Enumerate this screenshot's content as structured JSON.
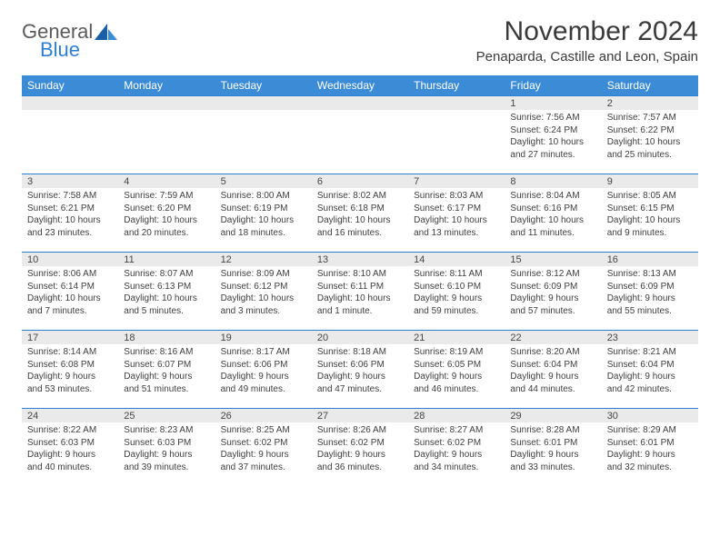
{
  "logo": {
    "text_general": "General",
    "text_blue": "Blue"
  },
  "header": {
    "month_title": "November 2024",
    "location": "Penaparda, Castille and Leon, Spain"
  },
  "colors": {
    "header_bg": "#3b8bd6",
    "header_text": "#ffffff",
    "daynum_bg": "#eaeaea",
    "border_blue": "#2f7fd1",
    "body_text": "#3e3e3e",
    "logo_gray": "#5a5a5a",
    "logo_blue": "#2f7fd1"
  },
  "weekdays": [
    "Sunday",
    "Monday",
    "Tuesday",
    "Wednesday",
    "Thursday",
    "Friday",
    "Saturday"
  ],
  "weeks": [
    [
      {
        "n": "",
        "sunrise": "",
        "sunset": "",
        "daylight": ""
      },
      {
        "n": "",
        "sunrise": "",
        "sunset": "",
        "daylight": ""
      },
      {
        "n": "",
        "sunrise": "",
        "sunset": "",
        "daylight": ""
      },
      {
        "n": "",
        "sunrise": "",
        "sunset": "",
        "daylight": ""
      },
      {
        "n": "",
        "sunrise": "",
        "sunset": "",
        "daylight": ""
      },
      {
        "n": "1",
        "sunrise": "Sunrise: 7:56 AM",
        "sunset": "Sunset: 6:24 PM",
        "daylight": "Daylight: 10 hours and 27 minutes."
      },
      {
        "n": "2",
        "sunrise": "Sunrise: 7:57 AM",
        "sunset": "Sunset: 6:22 PM",
        "daylight": "Daylight: 10 hours and 25 minutes."
      }
    ],
    [
      {
        "n": "3",
        "sunrise": "Sunrise: 7:58 AM",
        "sunset": "Sunset: 6:21 PM",
        "daylight": "Daylight: 10 hours and 23 minutes."
      },
      {
        "n": "4",
        "sunrise": "Sunrise: 7:59 AM",
        "sunset": "Sunset: 6:20 PM",
        "daylight": "Daylight: 10 hours and 20 minutes."
      },
      {
        "n": "5",
        "sunrise": "Sunrise: 8:00 AM",
        "sunset": "Sunset: 6:19 PM",
        "daylight": "Daylight: 10 hours and 18 minutes."
      },
      {
        "n": "6",
        "sunrise": "Sunrise: 8:02 AM",
        "sunset": "Sunset: 6:18 PM",
        "daylight": "Daylight: 10 hours and 16 minutes."
      },
      {
        "n": "7",
        "sunrise": "Sunrise: 8:03 AM",
        "sunset": "Sunset: 6:17 PM",
        "daylight": "Daylight: 10 hours and 13 minutes."
      },
      {
        "n": "8",
        "sunrise": "Sunrise: 8:04 AM",
        "sunset": "Sunset: 6:16 PM",
        "daylight": "Daylight: 10 hours and 11 minutes."
      },
      {
        "n": "9",
        "sunrise": "Sunrise: 8:05 AM",
        "sunset": "Sunset: 6:15 PM",
        "daylight": "Daylight: 10 hours and 9 minutes."
      }
    ],
    [
      {
        "n": "10",
        "sunrise": "Sunrise: 8:06 AM",
        "sunset": "Sunset: 6:14 PM",
        "daylight": "Daylight: 10 hours and 7 minutes."
      },
      {
        "n": "11",
        "sunrise": "Sunrise: 8:07 AM",
        "sunset": "Sunset: 6:13 PM",
        "daylight": "Daylight: 10 hours and 5 minutes."
      },
      {
        "n": "12",
        "sunrise": "Sunrise: 8:09 AM",
        "sunset": "Sunset: 6:12 PM",
        "daylight": "Daylight: 10 hours and 3 minutes."
      },
      {
        "n": "13",
        "sunrise": "Sunrise: 8:10 AM",
        "sunset": "Sunset: 6:11 PM",
        "daylight": "Daylight: 10 hours and 1 minute."
      },
      {
        "n": "14",
        "sunrise": "Sunrise: 8:11 AM",
        "sunset": "Sunset: 6:10 PM",
        "daylight": "Daylight: 9 hours and 59 minutes."
      },
      {
        "n": "15",
        "sunrise": "Sunrise: 8:12 AM",
        "sunset": "Sunset: 6:09 PM",
        "daylight": "Daylight: 9 hours and 57 minutes."
      },
      {
        "n": "16",
        "sunrise": "Sunrise: 8:13 AM",
        "sunset": "Sunset: 6:09 PM",
        "daylight": "Daylight: 9 hours and 55 minutes."
      }
    ],
    [
      {
        "n": "17",
        "sunrise": "Sunrise: 8:14 AM",
        "sunset": "Sunset: 6:08 PM",
        "daylight": "Daylight: 9 hours and 53 minutes."
      },
      {
        "n": "18",
        "sunrise": "Sunrise: 8:16 AM",
        "sunset": "Sunset: 6:07 PM",
        "daylight": "Daylight: 9 hours and 51 minutes."
      },
      {
        "n": "19",
        "sunrise": "Sunrise: 8:17 AM",
        "sunset": "Sunset: 6:06 PM",
        "daylight": "Daylight: 9 hours and 49 minutes."
      },
      {
        "n": "20",
        "sunrise": "Sunrise: 8:18 AM",
        "sunset": "Sunset: 6:06 PM",
        "daylight": "Daylight: 9 hours and 47 minutes."
      },
      {
        "n": "21",
        "sunrise": "Sunrise: 8:19 AM",
        "sunset": "Sunset: 6:05 PM",
        "daylight": "Daylight: 9 hours and 46 minutes."
      },
      {
        "n": "22",
        "sunrise": "Sunrise: 8:20 AM",
        "sunset": "Sunset: 6:04 PM",
        "daylight": "Daylight: 9 hours and 44 minutes."
      },
      {
        "n": "23",
        "sunrise": "Sunrise: 8:21 AM",
        "sunset": "Sunset: 6:04 PM",
        "daylight": "Daylight: 9 hours and 42 minutes."
      }
    ],
    [
      {
        "n": "24",
        "sunrise": "Sunrise: 8:22 AM",
        "sunset": "Sunset: 6:03 PM",
        "daylight": "Daylight: 9 hours and 40 minutes."
      },
      {
        "n": "25",
        "sunrise": "Sunrise: 8:23 AM",
        "sunset": "Sunset: 6:03 PM",
        "daylight": "Daylight: 9 hours and 39 minutes."
      },
      {
        "n": "26",
        "sunrise": "Sunrise: 8:25 AM",
        "sunset": "Sunset: 6:02 PM",
        "daylight": "Daylight: 9 hours and 37 minutes."
      },
      {
        "n": "27",
        "sunrise": "Sunrise: 8:26 AM",
        "sunset": "Sunset: 6:02 PM",
        "daylight": "Daylight: 9 hours and 36 minutes."
      },
      {
        "n": "28",
        "sunrise": "Sunrise: 8:27 AM",
        "sunset": "Sunset: 6:02 PM",
        "daylight": "Daylight: 9 hours and 34 minutes."
      },
      {
        "n": "29",
        "sunrise": "Sunrise: 8:28 AM",
        "sunset": "Sunset: 6:01 PM",
        "daylight": "Daylight: 9 hours and 33 minutes."
      },
      {
        "n": "30",
        "sunrise": "Sunrise: 8:29 AM",
        "sunset": "Sunset: 6:01 PM",
        "daylight": "Daylight: 9 hours and 32 minutes."
      }
    ]
  ]
}
